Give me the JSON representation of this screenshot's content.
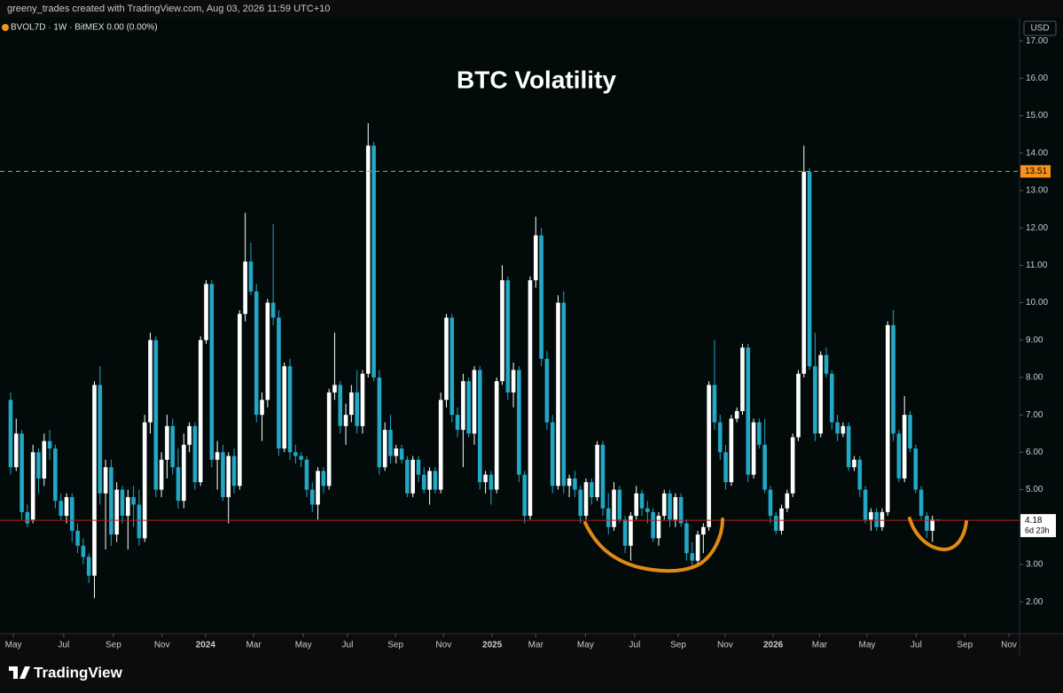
{
  "header": "greeny_trades created with TradingView.com, Aug 03, 2026 11:59 UTC+10",
  "footer": "TradingView",
  "chart_data": {
    "type": "candlestick",
    "title": "BTC Volatility",
    "legend": "BVOL7D · 1W · BitMEX  0.00 (0.00%)",
    "currency": "USD",
    "up_color": "#ffffff",
    "down_color": "#22a7c4",
    "ohlc": [
      [
        7.4,
        7.6,
        5.4,
        5.6
      ],
      [
        5.6,
        6.9,
        5.5,
        6.5
      ],
      [
        6.5,
        6.6,
        4.2,
        4.4
      ],
      [
        4.4,
        4.6,
        4.0,
        4.1
      ],
      [
        4.2,
        6.2,
        4.1,
        6.0
      ],
      [
        6.0,
        6.1,
        4.9,
        5.3
      ],
      [
        5.3,
        6.5,
        5.1,
        6.3
      ],
      [
        6.3,
        6.6,
        5.8,
        6.1
      ],
      [
        6.1,
        6.2,
        4.5,
        4.7
      ],
      [
        4.7,
        4.9,
        4.2,
        4.3
      ],
      [
        4.3,
        4.9,
        4.1,
        4.8
      ],
      [
        4.8,
        4.9,
        3.6,
        3.9
      ],
      [
        3.9,
        4.1,
        3.3,
        3.5
      ],
      [
        3.5,
        3.7,
        3.0,
        3.2
      ],
      [
        3.2,
        3.3,
        2.5,
        2.7
      ],
      [
        2.7,
        7.9,
        2.1,
        7.8
      ],
      [
        7.8,
        8.3,
        4.6,
        4.9
      ],
      [
        4.9,
        5.8,
        3.4,
        5.6
      ],
      [
        5.6,
        5.8,
        3.5,
        3.8
      ],
      [
        3.8,
        5.2,
        3.6,
        5.0
      ],
      [
        5.0,
        5.1,
        4.1,
        4.3
      ],
      [
        4.3,
        5.0,
        3.4,
        4.8
      ],
      [
        4.8,
        5.1,
        4.0,
        4.6
      ],
      [
        4.6,
        5.0,
        3.5,
        3.7
      ],
      [
        3.7,
        7.0,
        3.6,
        6.8
      ],
      [
        6.8,
        9.2,
        6.5,
        9.0
      ],
      [
        9.0,
        9.1,
        4.8,
        5.0
      ],
      [
        5.0,
        6.0,
        4.8,
        5.8
      ],
      [
        5.8,
        7.0,
        5.3,
        6.7
      ],
      [
        6.7,
        6.9,
        5.4,
        5.6
      ],
      [
        5.6,
        6.1,
        4.5,
        4.7
      ],
      [
        4.7,
        6.5,
        4.5,
        6.2
      ],
      [
        6.2,
        6.8,
        6.0,
        6.7
      ],
      [
        6.7,
        6.8,
        5.0,
        5.2
      ],
      [
        5.2,
        9.1,
        5.1,
        9.0
      ],
      [
        9.0,
        10.6,
        8.9,
        10.5
      ],
      [
        10.5,
        10.6,
        5.6,
        5.8
      ],
      [
        5.8,
        6.3,
        5.0,
        6.0
      ],
      [
        6.0,
        6.2,
        4.7,
        4.8
      ],
      [
        4.8,
        6.0,
        4.1,
        5.9
      ],
      [
        5.9,
        6.1,
        4.9,
        5.1
      ],
      [
        5.1,
        9.8,
        5.0,
        9.7
      ],
      [
        9.7,
        12.4,
        9.5,
        11.1
      ],
      [
        11.1,
        11.6,
        10.2,
        10.3
      ],
      [
        10.3,
        10.5,
        6.8,
        7.0
      ],
      [
        7.0,
        7.6,
        6.3,
        7.4
      ],
      [
        7.4,
        10.1,
        7.2,
        10.0
      ],
      [
        10.0,
        12.1,
        9.4,
        9.6
      ],
      [
        9.6,
        9.8,
        5.9,
        6.1
      ],
      [
        6.1,
        8.4,
        6.0,
        8.3
      ],
      [
        8.3,
        8.5,
        5.8,
        6.0
      ],
      [
        6.0,
        6.2,
        5.7,
        5.9
      ],
      [
        5.9,
        6.0,
        5.6,
        5.8
      ],
      [
        5.8,
        5.9,
        4.8,
        5.0
      ],
      [
        5.0,
        5.2,
        4.4,
        4.6
      ],
      [
        4.6,
        5.6,
        4.2,
        5.5
      ],
      [
        5.5,
        5.6,
        4.9,
        5.1
      ],
      [
        5.1,
        7.7,
        5.0,
        7.6
      ],
      [
        7.6,
        9.2,
        7.4,
        7.8
      ],
      [
        7.8,
        7.9,
        6.5,
        6.7
      ],
      [
        6.7,
        7.3,
        6.2,
        7.0
      ],
      [
        7.0,
        7.8,
        6.8,
        7.6
      ],
      [
        7.6,
        8.2,
        6.5,
        6.7
      ],
      [
        6.7,
        8.2,
        6.5,
        8.1
      ],
      [
        8.1,
        14.8,
        8.0,
        14.2
      ],
      [
        14.2,
        14.3,
        7.9,
        8.0
      ],
      [
        8.0,
        8.2,
        5.4,
        5.6
      ],
      [
        5.6,
        6.8,
        5.5,
        6.6
      ],
      [
        6.6,
        7.0,
        5.7,
        5.9
      ],
      [
        5.9,
        6.2,
        5.7,
        6.1
      ],
      [
        6.1,
        6.2,
        5.7,
        5.8
      ],
      [
        5.8,
        5.9,
        4.8,
        4.9
      ],
      [
        4.9,
        5.9,
        4.8,
        5.8
      ],
      [
        5.8,
        5.9,
        5.2,
        5.4
      ],
      [
        5.4,
        5.6,
        4.9,
        5.0
      ],
      [
        5.0,
        5.6,
        4.6,
        5.5
      ],
      [
        5.5,
        5.6,
        4.9,
        5.0
      ],
      [
        5.0,
        7.6,
        4.9,
        7.4
      ],
      [
        7.4,
        9.7,
        7.2,
        9.6
      ],
      [
        9.6,
        9.7,
        6.8,
        7.0
      ],
      [
        7.0,
        7.2,
        6.4,
        6.6
      ],
      [
        6.6,
        8.1,
        5.6,
        7.9
      ],
      [
        7.9,
        8.0,
        6.4,
        6.5
      ],
      [
        6.5,
        8.3,
        6.2,
        8.2
      ],
      [
        8.2,
        8.3,
        5.0,
        5.2
      ],
      [
        5.2,
        5.5,
        4.9,
        5.4
      ],
      [
        5.4,
        5.5,
        4.6,
        5.0
      ],
      [
        5.0,
        8.0,
        4.9,
        7.9
      ],
      [
        7.9,
        11.0,
        7.8,
        10.6
      ],
      [
        10.6,
        10.7,
        7.4,
        7.6
      ],
      [
        7.6,
        8.4,
        7.2,
        8.2
      ],
      [
        8.2,
        8.3,
        5.2,
        5.4
      ],
      [
        5.4,
        5.5,
        4.1,
        4.3
      ],
      [
        4.3,
        10.7,
        4.2,
        10.6
      ],
      [
        10.6,
        12.3,
        10.4,
        11.8
      ],
      [
        11.8,
        12.0,
        8.3,
        8.5
      ],
      [
        8.5,
        8.7,
        6.6,
        6.8
      ],
      [
        6.8,
        7.0,
        4.9,
        5.1
      ],
      [
        5.1,
        10.2,
        5.0,
        10.0
      ],
      [
        10.0,
        10.3,
        4.9,
        5.1
      ],
      [
        5.1,
        5.4,
        4.8,
        5.3
      ],
      [
        5.3,
        5.5,
        4.8,
        5.0
      ],
      [
        5.0,
        5.1,
        4.1,
        4.3
      ],
      [
        4.3,
        5.3,
        4.2,
        5.2
      ],
      [
        5.2,
        5.3,
        4.6,
        4.8
      ],
      [
        4.8,
        6.3,
        4.7,
        6.2
      ],
      [
        6.2,
        6.3,
        4.3,
        4.5
      ],
      [
        4.5,
        4.9,
        3.8,
        4.0
      ],
      [
        4.0,
        5.2,
        3.9,
        5.0
      ],
      [
        5.0,
        5.1,
        4.1,
        4.2
      ],
      [
        4.2,
        4.3,
        3.3,
        3.5
      ],
      [
        3.5,
        4.4,
        3.1,
        4.3
      ],
      [
        4.3,
        5.1,
        4.2,
        4.9
      ],
      [
        4.9,
        5.0,
        4.3,
        4.5
      ],
      [
        4.5,
        4.7,
        4.1,
        4.4
      ],
      [
        4.4,
        4.5,
        3.6,
        3.7
      ],
      [
        3.7,
        4.4,
        3.5,
        4.3
      ],
      [
        4.3,
        5.0,
        4.2,
        4.9
      ],
      [
        4.9,
        5.0,
        4.0,
        4.2
      ],
      [
        4.2,
        4.9,
        4.0,
        4.8
      ],
      [
        4.8,
        4.9,
        4.0,
        4.1
      ],
      [
        4.1,
        4.2,
        3.1,
        3.3
      ],
      [
        3.3,
        3.6,
        2.9,
        3.1
      ],
      [
        3.1,
        3.9,
        3.0,
        3.8
      ],
      [
        3.8,
        4.1,
        3.3,
        4.0
      ],
      [
        4.0,
        7.9,
        3.9,
        7.8
      ],
      [
        7.8,
        9.0,
        6.6,
        6.8
      ],
      [
        6.8,
        7.0,
        5.8,
        6.0
      ],
      [
        6.0,
        6.2,
        5.0,
        5.2
      ],
      [
        5.2,
        7.0,
        5.1,
        6.9
      ],
      [
        6.9,
        7.2,
        6.8,
        7.1
      ],
      [
        7.1,
        8.9,
        7.0,
        8.8
      ],
      [
        8.8,
        8.9,
        5.2,
        5.4
      ],
      [
        5.4,
        6.9,
        5.3,
        6.8
      ],
      [
        6.8,
        6.9,
        6.1,
        6.2
      ],
      [
        6.2,
        6.9,
        4.9,
        5.0
      ],
      [
        5.0,
        5.1,
        4.1,
        4.3
      ],
      [
        4.3,
        4.4,
        3.8,
        3.9
      ],
      [
        3.9,
        4.6,
        3.8,
        4.5
      ],
      [
        4.5,
        5.0,
        4.4,
        4.9
      ],
      [
        4.9,
        6.5,
        4.8,
        6.4
      ],
      [
        6.4,
        8.2,
        6.3,
        8.1
      ],
      [
        8.1,
        14.2,
        8.0,
        13.5
      ],
      [
        13.5,
        13.6,
        8.2,
        8.3
      ],
      [
        8.3,
        9.2,
        6.3,
        6.5
      ],
      [
        6.5,
        8.7,
        6.4,
        8.6
      ],
      [
        8.6,
        8.8,
        8.0,
        8.1
      ],
      [
        8.1,
        8.2,
        6.6,
        6.8
      ],
      [
        6.8,
        7.0,
        6.3,
        6.5
      ],
      [
        6.5,
        6.8,
        6.4,
        6.7
      ],
      [
        6.7,
        6.8,
        5.5,
        5.6
      ],
      [
        5.6,
        5.9,
        5.5,
        5.8
      ],
      [
        5.8,
        5.9,
        4.8,
        5.0
      ],
      [
        5.0,
        5.1,
        4.1,
        4.2
      ],
      [
        4.2,
        4.5,
        3.9,
        4.4
      ],
      [
        4.4,
        4.5,
        3.9,
        4.0
      ],
      [
        4.0,
        4.5,
        3.9,
        4.4
      ],
      [
        4.4,
        9.5,
        4.3,
        9.4
      ],
      [
        9.4,
        9.8,
        6.3,
        6.5
      ],
      [
        6.5,
        6.6,
        5.2,
        5.3
      ],
      [
        5.3,
        7.5,
        5.2,
        7.0
      ],
      [
        7.0,
        7.1,
        6.0,
        6.1
      ],
      [
        6.1,
        6.2,
        4.9,
        5.0
      ],
      [
        5.0,
        5.1,
        4.2,
        4.3
      ],
      [
        4.3,
        4.4,
        3.7,
        3.9
      ],
      [
        3.9,
        4.3,
        3.6,
        4.2
      ],
      [
        4.2,
        4.2,
        4.15,
        4.18
      ]
    ],
    "xlim": [
      -1.9,
      180.6
    ],
    "xticks": [
      {
        "value": 0.5,
        "label": "May"
      },
      {
        "value": 9.5,
        "label": "Jul"
      },
      {
        "value": 18.4,
        "label": "Sep"
      },
      {
        "value": 27.1,
        "label": "Nov"
      },
      {
        "value": 34.9,
        "label": "2024"
      },
      {
        "value": 43.5,
        "label": "Mar"
      },
      {
        "value": 52.4,
        "label": "May"
      },
      {
        "value": 60.3,
        "label": "Jul"
      },
      {
        "value": 68.9,
        "label": "Sep"
      },
      {
        "value": 77.5,
        "label": "Nov"
      },
      {
        "value": 86.2,
        "label": "2025"
      },
      {
        "value": 94.0,
        "label": "Mar"
      },
      {
        "value": 102.9,
        "label": "May"
      },
      {
        "value": 111.7,
        "label": "Jul"
      },
      {
        "value": 119.5,
        "label": "Sep"
      },
      {
        "value": 127.9,
        "label": "Nov"
      },
      {
        "value": 136.5,
        "label": "2026"
      },
      {
        "value": 144.8,
        "label": "Mar"
      },
      {
        "value": 153.3,
        "label": "May"
      },
      {
        "value": 162.1,
        "label": "Jul"
      },
      {
        "value": 170.8,
        "label": "Sep"
      },
      {
        "value": 178.7,
        "label": "Nov"
      }
    ],
    "ylim": [
      1.15,
      17.62
    ],
    "yticks": [
      {
        "value": 2,
        "label": "2.00"
      },
      {
        "value": 3,
        "label": "3.00"
      },
      {
        "value": 4,
        "label": "4.00"
      },
      {
        "value": 5,
        "label": "5.00"
      },
      {
        "value": 6,
        "label": "6.00"
      },
      {
        "value": 7,
        "label": "7.00"
      },
      {
        "value": 8,
        "label": "8.00"
      },
      {
        "value": 9,
        "label": "9.00"
      },
      {
        "value": 10,
        "label": "10.00"
      },
      {
        "value": 11,
        "label": "11.00"
      },
      {
        "value": 12,
        "label": "12.00"
      },
      {
        "value": 13,
        "label": "13.00"
      },
      {
        "value": 14,
        "label": "14.00"
      },
      {
        "value": 15,
        "label": "15.00"
      },
      {
        "value": 16,
        "label": "16.00"
      },
      {
        "value": 17,
        "label": "17.00"
      }
    ],
    "price_line": 13.51,
    "price_line_color": "#f7931a",
    "last_price": 4.18,
    "last_price_line_color": "#b3261e",
    "countdown": "6d 23h"
  }
}
